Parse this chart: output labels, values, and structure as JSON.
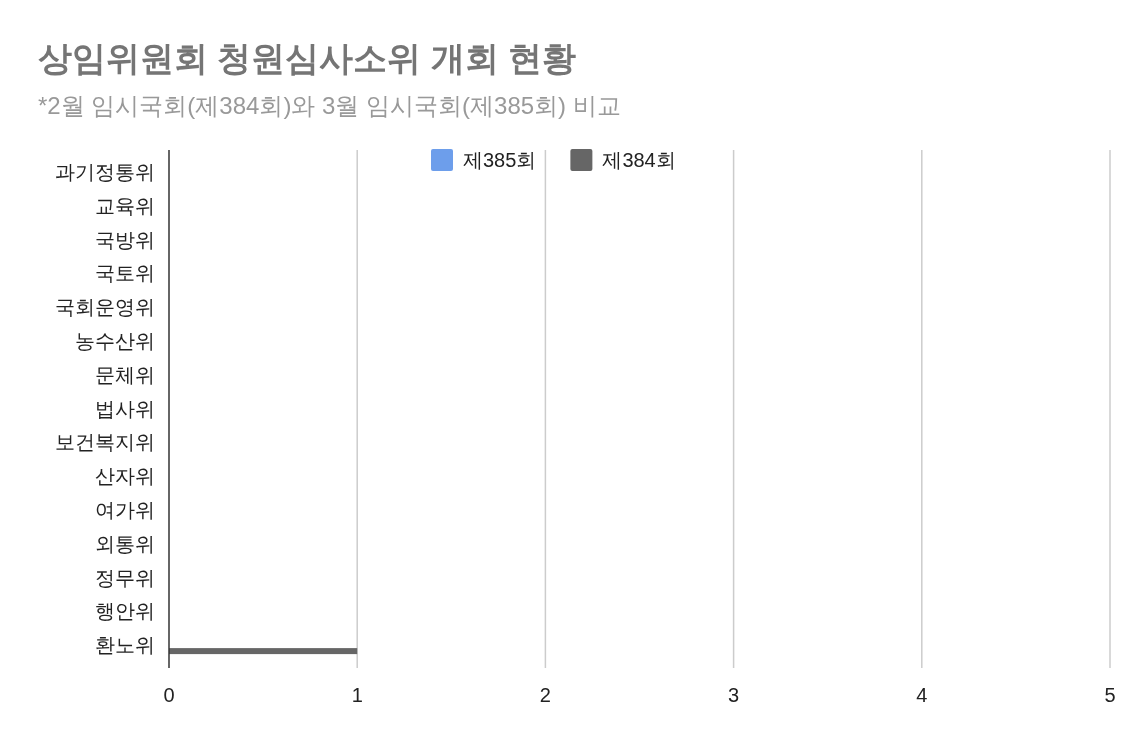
{
  "chart_data": {
    "type": "bar",
    "orientation": "horizontal",
    "title": "상임위원회 청원심사소위 개회 현황",
    "subtitle": "*2월 임시국회(제384회)와 3월 임시국회(제385회) 비교",
    "categories": [
      "과기정통위",
      "교육위",
      "국방위",
      "국토위",
      "국회운영위",
      "농수산위",
      "문체위",
      "법사위",
      "보건복지위",
      "산자위",
      "여가위",
      "외통위",
      "정무위",
      "행안위",
      "환노위"
    ],
    "series": [
      {
        "name": "제385회",
        "color": "#6d9eeb",
        "values": [
          0,
          0,
          0,
          0,
          0,
          0,
          0,
          0,
          0,
          0,
          0,
          0,
          0,
          0,
          0
        ]
      },
      {
        "name": "제384회",
        "color": "#666666",
        "values": [
          0,
          0,
          0,
          0,
          0,
          0,
          0,
          0,
          0,
          0,
          0,
          0,
          0,
          0,
          1
        ]
      }
    ],
    "xlim": [
      0,
      5
    ],
    "xticks": [
      0,
      1,
      2,
      3,
      4,
      5
    ],
    "grid": "x",
    "legend": "top"
  }
}
